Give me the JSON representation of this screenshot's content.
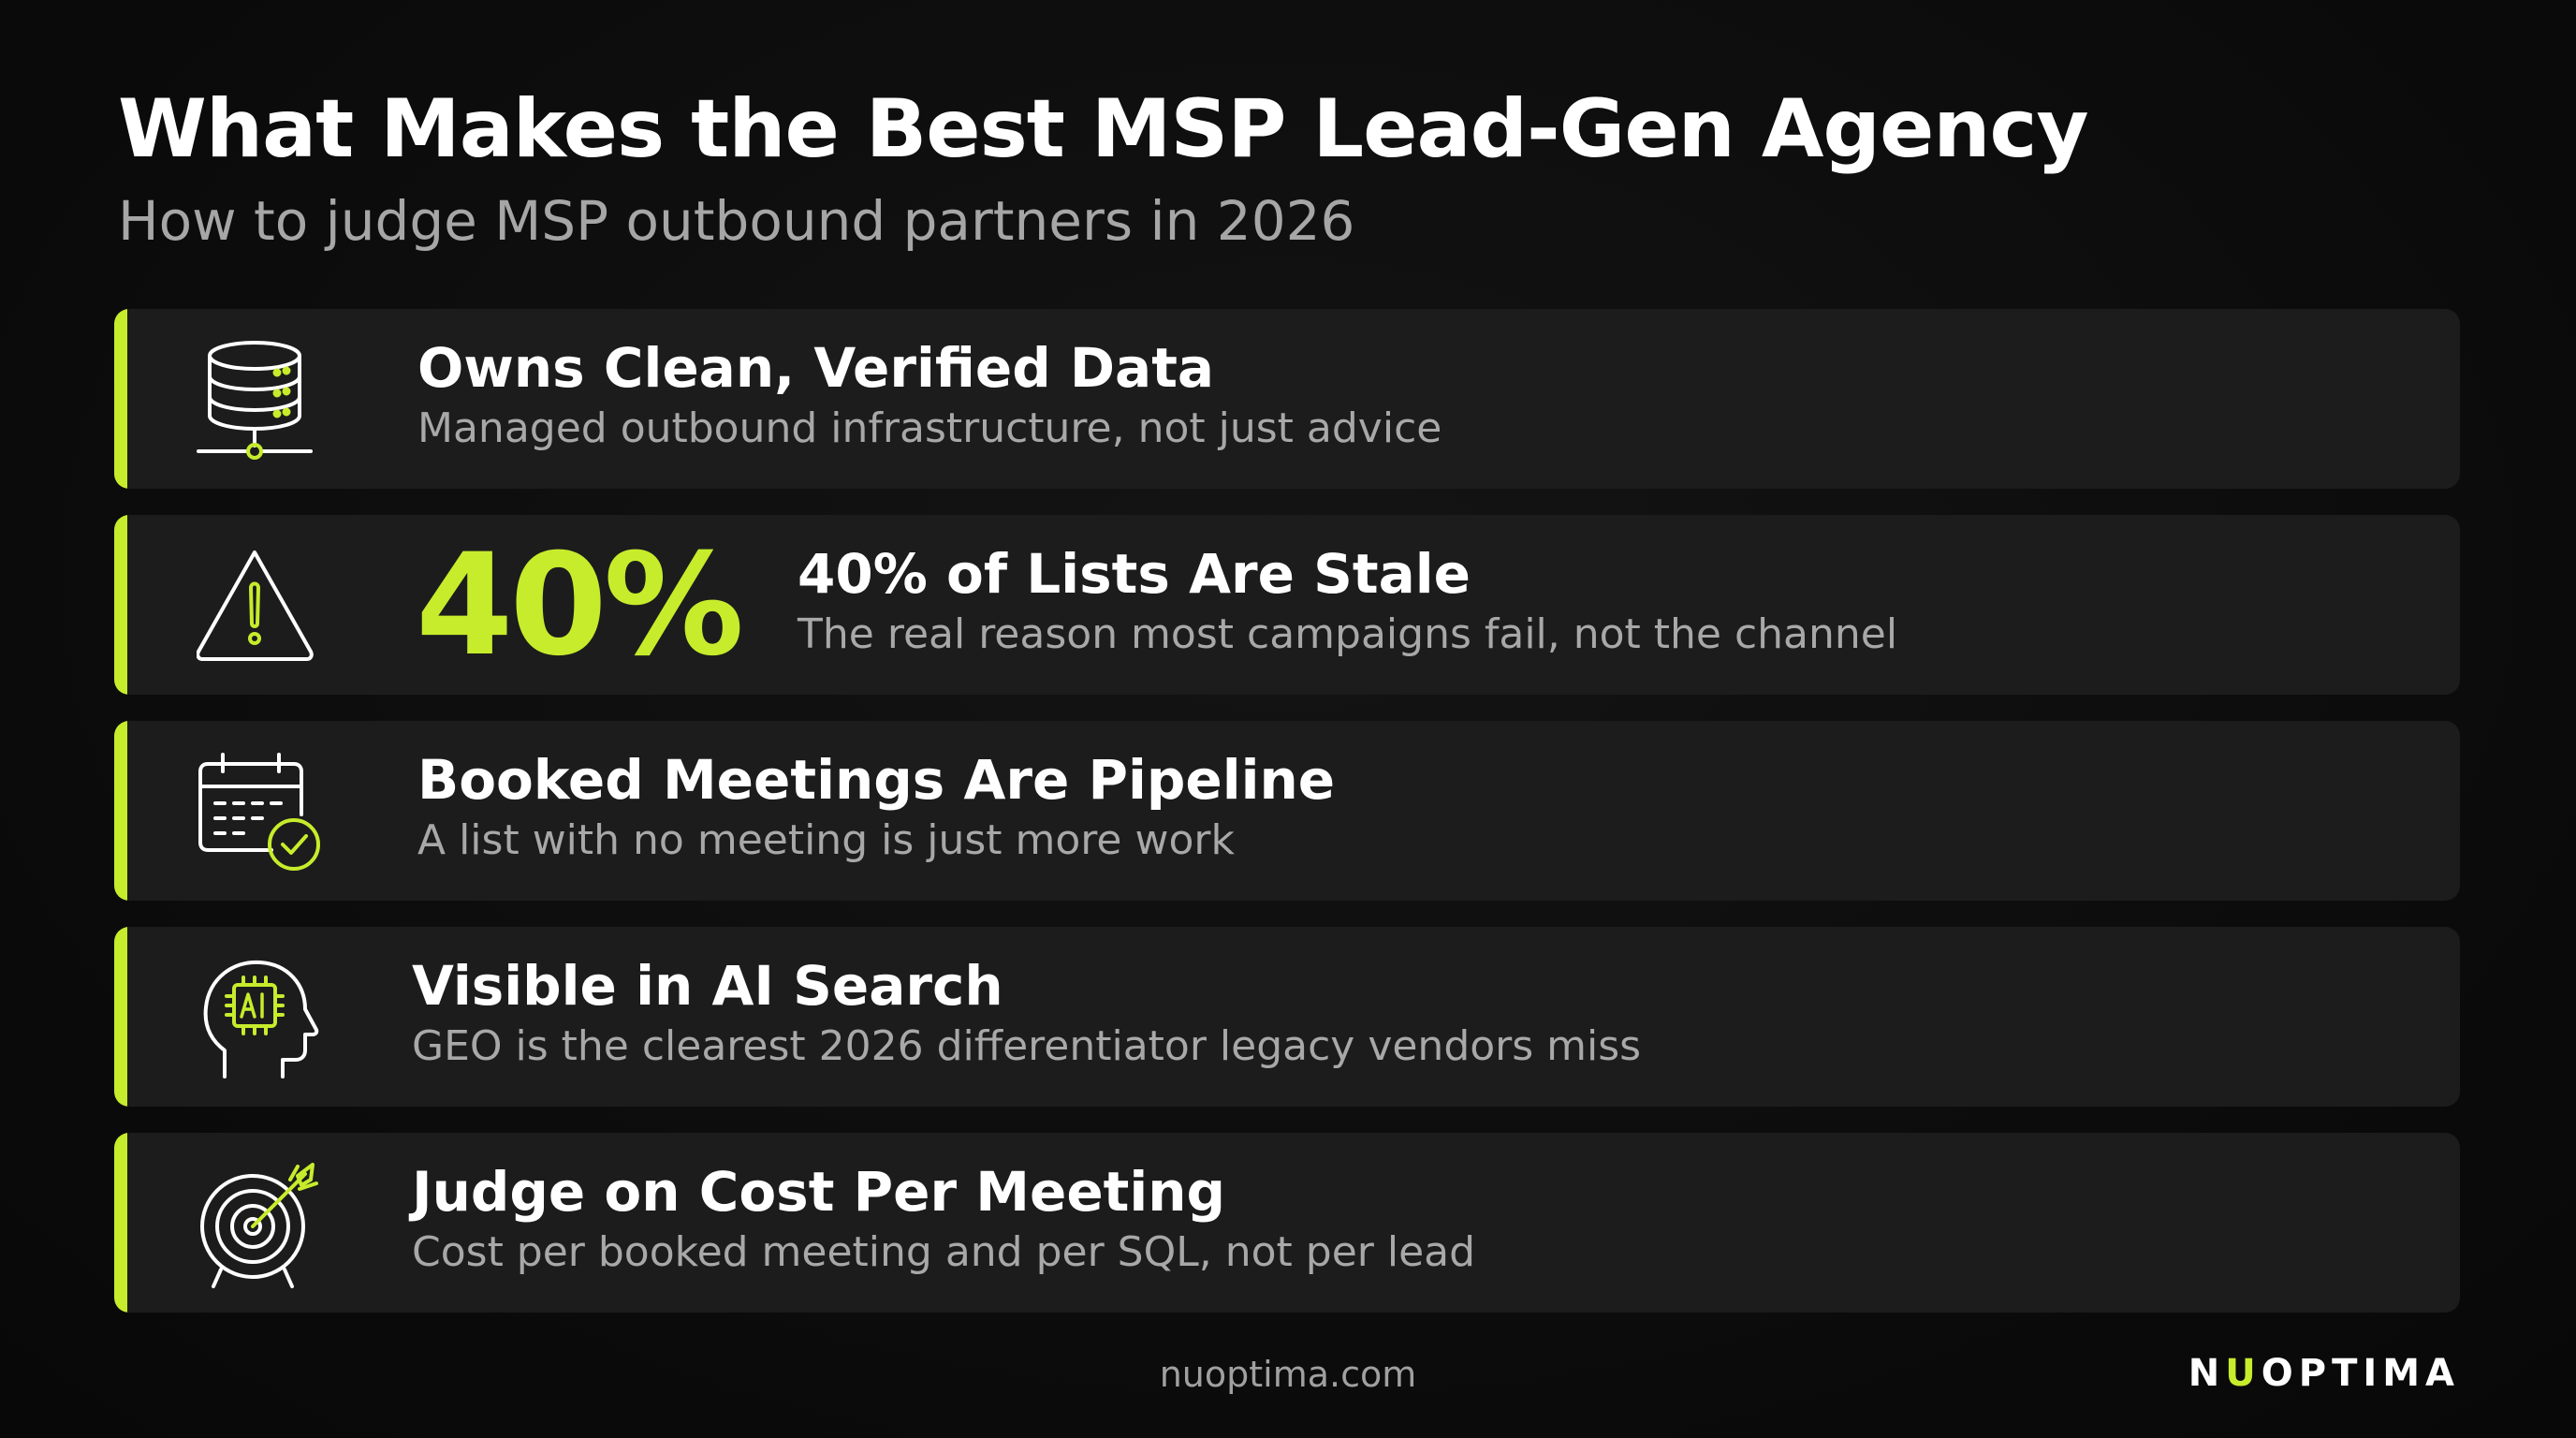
{
  "header": {
    "title": "What Makes the Best MSP Lead-Gen Agency",
    "subtitle": "How to judge MSP outbound partners in 2026"
  },
  "colors": {
    "accent": "#c6ec2c",
    "background": "#0d0d0d",
    "card": "#1c1c1c",
    "muted_text": "#a8a8a8"
  },
  "cards": [
    {
      "icon": "database-icon",
      "title": "Owns Clean, Verified Data",
      "description": "Managed outbound infrastructure, not just advice"
    },
    {
      "icon": "warning-icon",
      "stat": "40%",
      "title": "40% of Lists Are Stale",
      "description": "The real reason most campaigns fail, not the channel"
    },
    {
      "icon": "calendar-check-icon",
      "title": "Booked Meetings Are Pipeline",
      "description": "A list with no meeting is just more work"
    },
    {
      "icon": "ai-head-icon",
      "title": "Visible in AI Search",
      "description": "GEO is the clearest 2026 differentiator legacy vendors miss"
    },
    {
      "icon": "target-icon",
      "title": "Judge on Cost Per Meeting",
      "description": "Cost per booked meeting and per SQL, not per lead"
    }
  ],
  "footer": {
    "url": "nuoptima.com",
    "brand_prefix": "N",
    "brand_accent": "U",
    "brand_suffix": "OPTIMA"
  }
}
